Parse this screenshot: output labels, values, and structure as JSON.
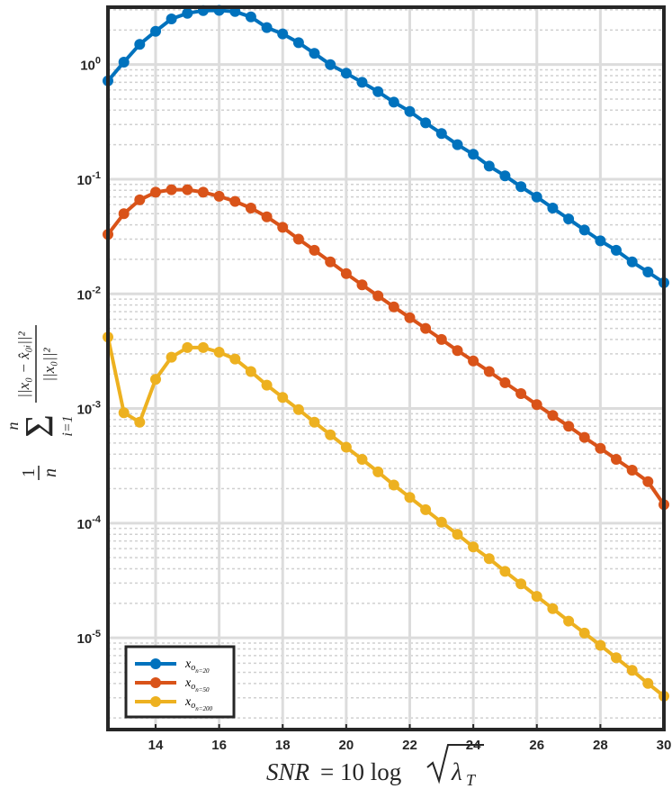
{
  "chart_data": {
    "type": "line",
    "xlabel": "SNR = 10 log √λ_T",
    "ylabel": "(1/n) Σ_{i=1}^{n} ||x_o − x̂_oi||² / ||x_o||²",
    "yscale": "log",
    "xlim": [
      12.5,
      30
    ],
    "ylim_log10": [
      -5.8,
      0.5
    ],
    "grid": true,
    "legend_position": "bottom-left",
    "x_ticks": [
      14,
      16,
      18,
      20,
      22,
      24,
      26,
      28,
      30
    ],
    "y_ticks": [
      {
        "mantissa": "10",
        "exponent": "0",
        "log10": 0
      },
      {
        "mantissa": "10",
        "exponent": "-1",
        "log10": -1
      },
      {
        "mantissa": "10",
        "exponent": "-2",
        "log10": -2
      },
      {
        "mantissa": "10",
        "exponent": "-3",
        "log10": -3
      },
      {
        "mantissa": "10",
        "exponent": "-4",
        "log10": -4
      },
      {
        "mantissa": "10",
        "exponent": "-5",
        "log10": -5
      }
    ],
    "x": [
      12.5,
      13.0,
      13.5,
      14.0,
      14.5,
      15.0,
      15.5,
      16.0,
      16.5,
      17.0,
      17.5,
      18.0,
      18.5,
      19.0,
      19.5,
      20.0,
      20.5,
      21.0,
      21.5,
      22.0,
      22.5,
      23.0,
      23.5,
      24.0,
      24.5,
      25.0,
      25.5,
      26.0,
      26.5,
      27.0,
      27.5,
      28.0,
      28.5,
      29.0,
      29.5,
      30.0
    ],
    "series": [
      {
        "name": "x_{o_{n=20}}",
        "color": "#0072BD",
        "values": [
          0.72,
          1.05,
          1.5,
          1.95,
          2.5,
          2.8,
          2.95,
          2.97,
          2.9,
          2.6,
          2.1,
          1.85,
          1.55,
          1.25,
          1.0,
          0.84,
          0.7,
          0.58,
          0.47,
          0.39,
          0.31,
          0.25,
          0.2,
          0.165,
          0.13,
          0.107,
          0.086,
          0.07,
          0.056,
          0.045,
          0.036,
          0.029,
          0.024,
          0.019,
          0.0155,
          0.0125
        ]
      },
      {
        "name": "x_{o_{n=50}}",
        "color": "#D95319",
        "values": [
          0.033,
          0.05,
          0.066,
          0.077,
          0.081,
          0.081,
          0.077,
          0.071,
          0.064,
          0.056,
          0.047,
          0.038,
          0.03,
          0.024,
          0.019,
          0.015,
          0.012,
          0.0096,
          0.0077,
          0.0062,
          0.005,
          0.004,
          0.0032,
          0.0026,
          0.0021,
          0.00168,
          0.00135,
          0.00108,
          0.00087,
          0.0007,
          0.00056,
          0.00045,
          0.00036,
          0.00029,
          0.00023,
          0.000145
        ]
      },
      {
        "name": "x_{o_{n=200}}",
        "color": "#EDB120",
        "values": [
          0.0042,
          0.00092,
          0.00076,
          0.0018,
          0.0028,
          0.0034,
          0.0034,
          0.0031,
          0.0027,
          0.0021,
          0.0016,
          0.00125,
          0.00098,
          0.00076,
          0.00059,
          0.00046,
          0.00036,
          0.00028,
          0.000215,
          0.000168,
          0.000131,
          0.000102,
          8e-05,
          6.2e-05,
          4.9e-05,
          3.8e-05,
          2.95e-05,
          2.3e-05,
          1.8e-05,
          1.4e-05,
          1.1e-05,
          8.6e-06,
          6.7e-06,
          5.2e-06,
          4e-06,
          3.1e-06
        ]
      }
    ],
    "legend": [
      {
        "base": "x",
        "sub": "o",
        "subsub": "n=20"
      },
      {
        "base": "x",
        "sub": "o",
        "subsub": "n=50"
      },
      {
        "base": "x",
        "sub": "o",
        "subsub": "n=200"
      }
    ]
  }
}
